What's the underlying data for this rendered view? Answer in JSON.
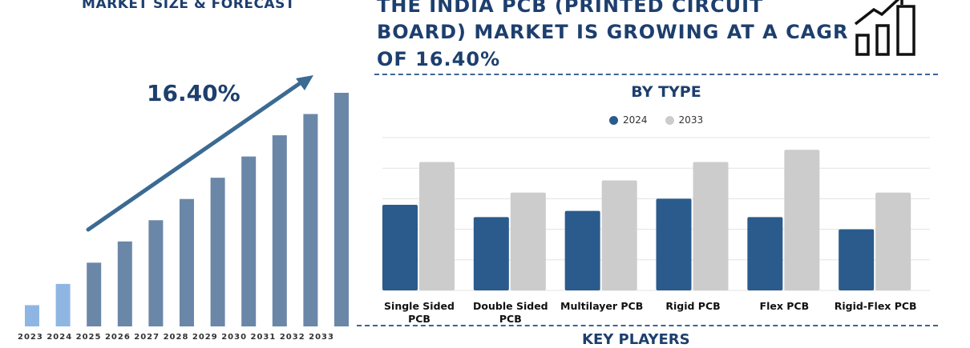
{
  "left_panel": {
    "title": "MARKET SIZE & FORECAST",
    "cagr": "16.40%",
    "year_strip": "2023 2024 2025 2026 2027 2028 2029 2030 2031 2032 2033"
  },
  "header": {
    "title_line1": "THE INDIA PCB (PRINTED CIRCUIT",
    "title_line2": "BOARD) MARKET IS GROWING AT A CAGR",
    "title_line3": "OF 16.40%"
  },
  "by_type": {
    "title": "BY TYPE",
    "legend": [
      {
        "label": "2024",
        "color": "#2a5b8c"
      },
      {
        "label": "2033",
        "color": "#cccccc"
      }
    ]
  },
  "footer": {
    "key_players": "KEY PLAYERS"
  },
  "colors": {
    "navy": "#1d3f6e",
    "bar_dark": "#6a87a8",
    "bar_light": "#8fb6e3",
    "series_2024": "#2a5b8c",
    "series_2033": "#cccccc"
  },
  "chart_data": [
    {
      "type": "bar",
      "title": "MARKET SIZE & FORECAST",
      "categories": [
        "2023",
        "2024",
        "2025",
        "2026",
        "2027",
        "2028",
        "2029",
        "2030",
        "2031",
        "2032",
        "2033"
      ],
      "values": [
        1.0,
        2.0,
        3.0,
        4.0,
        5.0,
        6.0,
        7.0,
        8.0,
        9.0,
        10.0,
        11.0
      ],
      "ylim": [
        0,
        11.5
      ],
      "annotation": "16.40%",
      "grid": false
    },
    {
      "type": "bar",
      "title": "BY TYPE",
      "categories": [
        "Single Sided PCB",
        "Double Sided PCB",
        "Multilayer PCB",
        "Rigid PCB",
        "Flex PCB",
        "Rigid-Flex PCB"
      ],
      "series": [
        {
          "name": "2024",
          "values": [
            2.8,
            2.4,
            2.6,
            3.0,
            2.4,
            2.0
          ]
        },
        {
          "name": "2033",
          "values": [
            4.2,
            3.2,
            3.6,
            4.2,
            4.6,
            3.2
          ]
        }
      ],
      "ylim": [
        0,
        5
      ],
      "grid": true,
      "legend_position": "top"
    }
  ]
}
